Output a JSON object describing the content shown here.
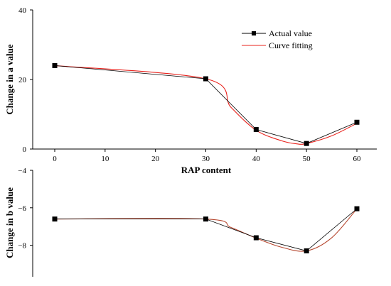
{
  "chart_data": [
    {
      "type": "line",
      "xlabel": "RAP content",
      "ylabel": "Change in a value",
      "ylim": [
        0,
        40
      ],
      "yticks": [
        0,
        20,
        40
      ],
      "xlim": [
        0,
        60
      ],
      "xticks": [
        0,
        10,
        20,
        30,
        40,
        50,
        60
      ],
      "grid": false,
      "legend": "top-right",
      "series": [
        {
          "name": "Actual value",
          "color": "#000000",
          "marker": "square",
          "x": [
            0,
            30,
            40,
            50,
            60
          ],
          "y": [
            24,
            20.2,
            5.6,
            1.6,
            7.7
          ]
        },
        {
          "name": "Curve fitting",
          "color": "#e8211b",
          "x": [
            0,
            30,
            35,
            40,
            45,
            48,
            50,
            55,
            60
          ],
          "y": [
            24,
            20.2,
            12,
            5.4,
            2.4,
            1.5,
            1.6,
            3.8,
            7.4
          ]
        }
      ]
    },
    {
      "type": "line",
      "xlabel": "",
      "ylabel": "Change in b value",
      "ylim": [
        -9,
        -4
      ],
      "yticks": [
        -8,
        -6,
        -4
      ],
      "xlim": [
        0,
        60
      ],
      "grid": false,
      "series": [
        {
          "name": "",
          "color": "#000000",
          "marker": "square",
          "x": [
            0,
            30,
            40,
            50,
            60
          ],
          "y": [
            -6.6,
            -6.6,
            -7.6,
            -8.3,
            -6.05
          ]
        },
        {
          "name": "",
          "color": "#e8211b",
          "x": [
            0,
            30,
            35,
            40,
            45,
            50,
            55,
            60
          ],
          "y": [
            -6.6,
            -6.6,
            -7.05,
            -7.62,
            -8.1,
            -8.3,
            -7.6,
            -6.05
          ]
        }
      ]
    }
  ]
}
